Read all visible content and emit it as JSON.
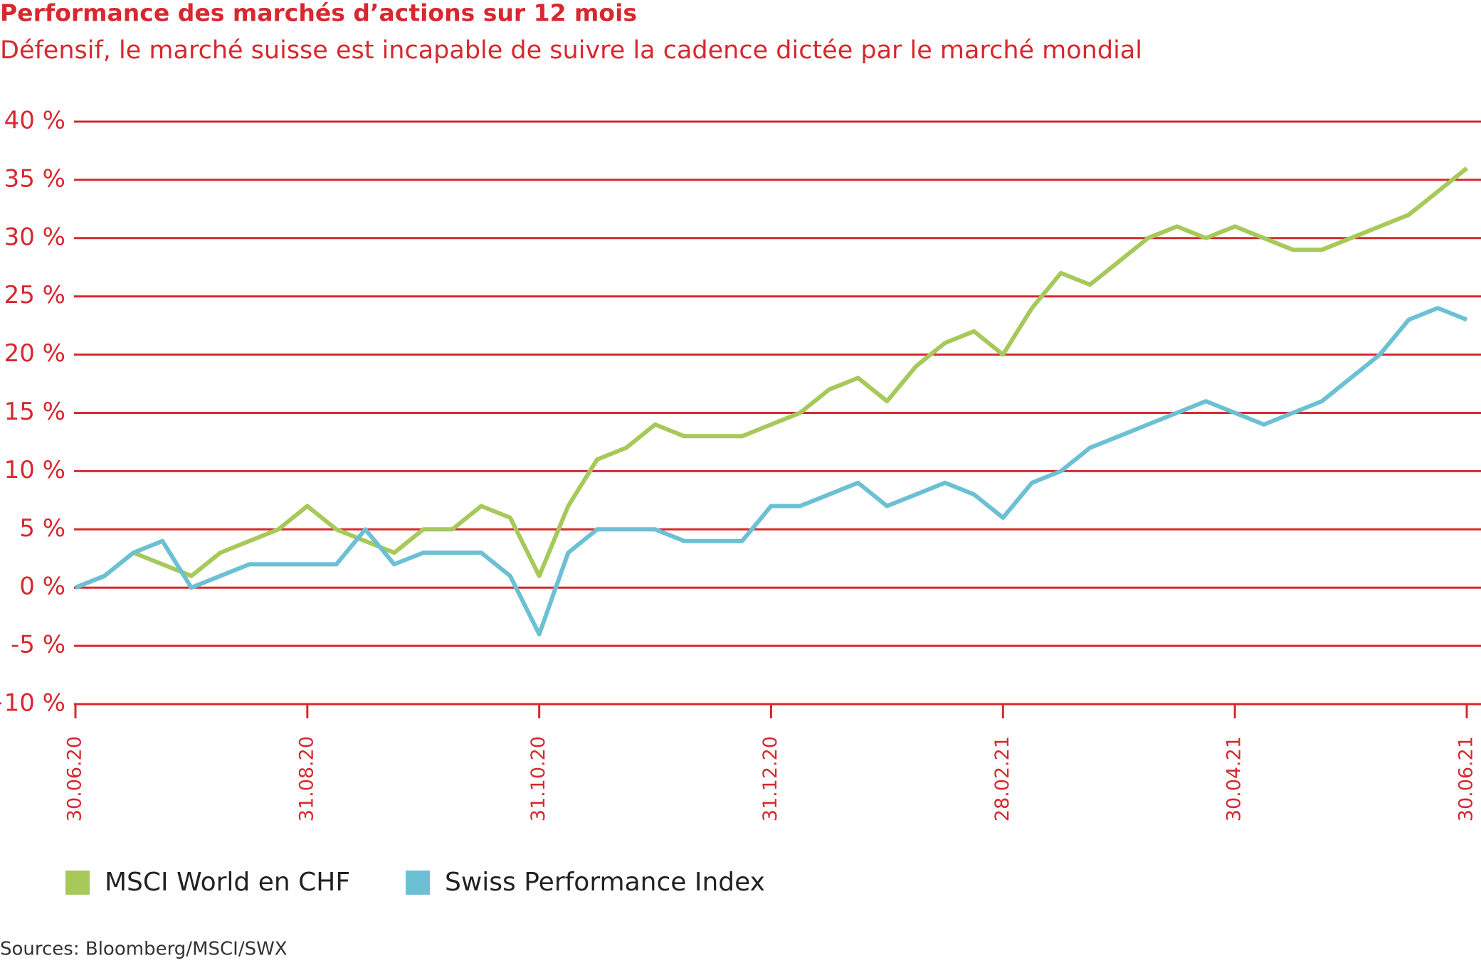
{
  "chart_data": {
    "type": "line",
    "title": "Performance des marchés d’actions sur 12 mois",
    "subtitle": "Défensif, le marché suisse est incapable de suivre la cadence dictée par le marché mondial",
    "source": "Sources: Bloomberg/MSCI/SWX",
    "categories": [
      "30.06.20",
      null,
      null,
      null,
      null,
      null,
      null,
      null,
      "31.08.20",
      null,
      null,
      null,
      null,
      null,
      null,
      null,
      "31.10.20",
      null,
      null,
      null,
      null,
      null,
      null,
      null,
      "31.12.20",
      null,
      null,
      null,
      null,
      null,
      null,
      null,
      "28.02.21",
      null,
      null,
      null,
      null,
      null,
      null,
      null,
      "30.04.21",
      null,
      null,
      null,
      null,
      null,
      null,
      null,
      "30.06.21"
    ],
    "series": [
      {
        "name": "MSCI World en CHF",
        "color": "#a6c95a",
        "values": [
          0,
          1,
          3,
          2,
          1,
          3,
          4,
          5,
          7,
          5,
          4,
          3,
          5,
          5,
          7,
          6,
          1,
          7,
          11,
          12,
          14,
          13,
          13,
          13,
          14,
          15,
          17,
          18,
          16,
          19,
          21,
          22,
          20,
          24,
          27,
          26,
          28,
          30,
          31,
          30,
          31,
          30,
          29,
          29,
          30,
          31,
          32,
          34,
          36
        ]
      },
      {
        "name": "Swiss Performance Index",
        "color": "#6cc0d4",
        "values": [
          0,
          1,
          3,
          4,
          0,
          1,
          2,
          2,
          2,
          2,
          5,
          2,
          3,
          3,
          3,
          1,
          -4,
          3,
          5,
          5,
          5,
          4,
          4,
          4,
          7,
          7,
          8,
          9,
          7,
          8,
          9,
          8,
          6,
          9,
          10,
          12,
          13,
          14,
          15,
          16,
          15,
          14,
          15,
          16,
          18,
          20,
          23,
          24,
          23
        ]
      }
    ],
    "ylim": [
      -10,
      40
    ],
    "yticks": [
      {
        "value": -10,
        "label": "−10 %"
      },
      {
        "value": -5,
        "label": "-5 %"
      },
      {
        "value": 0,
        "label": "0 %"
      },
      {
        "value": 5,
        "label": "5 %"
      },
      {
        "value": 10,
        "label": "10 %"
      },
      {
        "value": 15,
        "label": "15 %"
      },
      {
        "value": 20,
        "label": "20 %"
      },
      {
        "value": 25,
        "label": "25 %"
      },
      {
        "value": 30,
        "label": "30 %"
      },
      {
        "value": 35,
        "label": "35 %"
      },
      {
        "value": 40,
        "label": "40 %"
      }
    ],
    "grid": true,
    "grid_color": "#d7282f"
  }
}
